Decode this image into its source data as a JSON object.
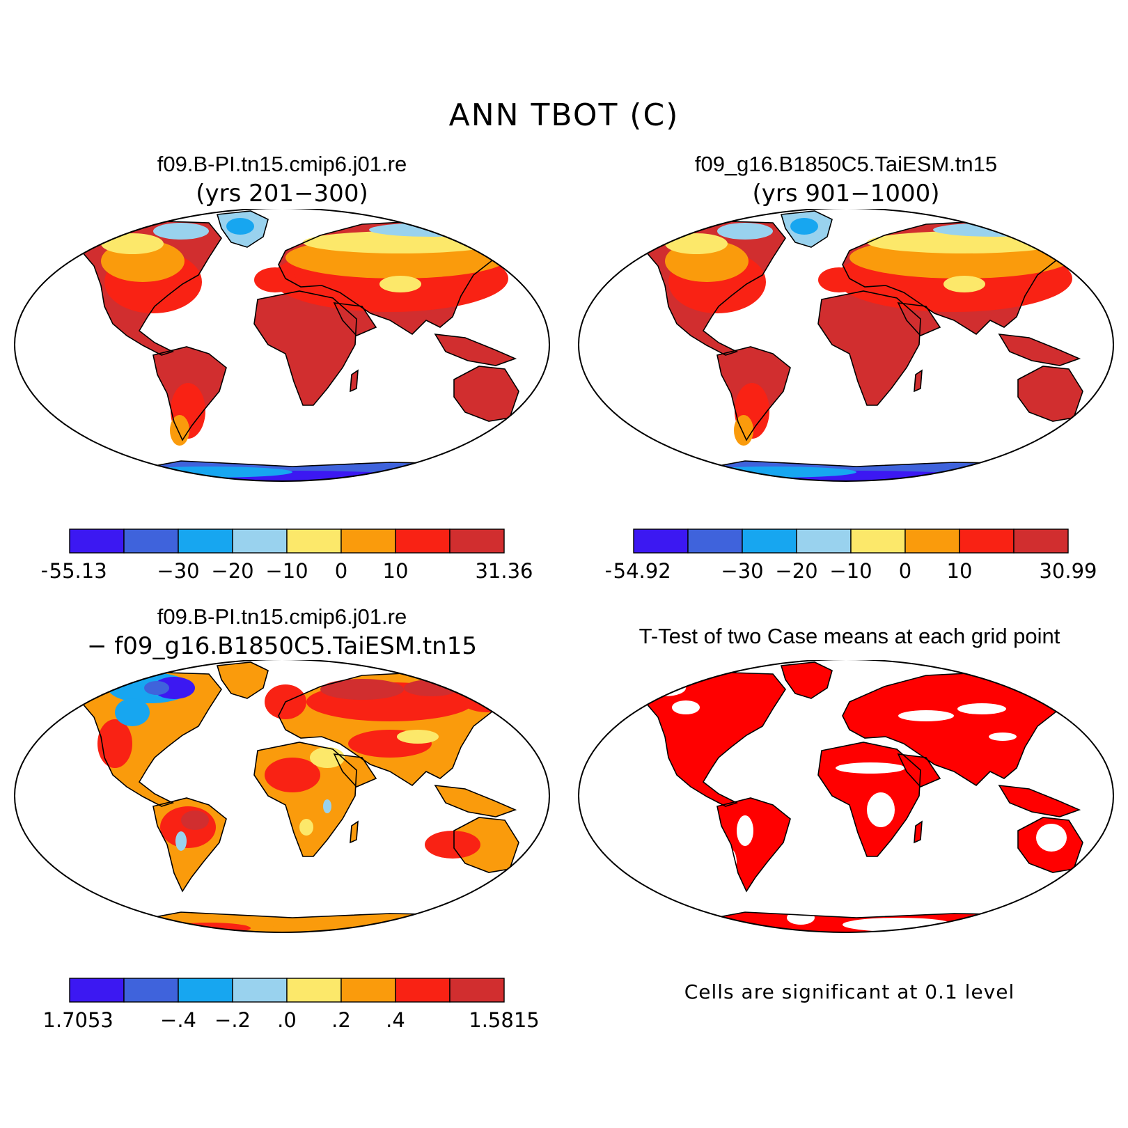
{
  "title": "ANN TBOT (C)",
  "colors": {
    "scale": [
      "#3c18f2",
      "#3f63dc",
      "#17a6f0",
      "#99d2ee",
      "#fce86a",
      "#fa9b0c",
      "#f92214",
      "#d12e2f"
    ],
    "land_outline": "#000000",
    "significant": "#ff0000"
  },
  "panels": [
    {
      "id": "case1",
      "title": "f09.B-PI.tn15.cmip6.j01.re",
      "subtitle": "(yrs 201−300)",
      "colorbar": {
        "labels": [
          "−55.13",
          "−30",
          "−20",
          "−10",
          "0",
          "10",
          "31.36"
        ]
      }
    },
    {
      "id": "case2",
      "title": "f09_g16.B1850C5.TaiESM.tn15",
      "subtitle": "(yrs 901−1000)",
      "colorbar": {
        "labels": [
          "−54.92",
          "−30",
          "−20",
          "−10",
          "0",
          "10",
          "30.99"
        ]
      }
    },
    {
      "id": "diff",
      "title": "f09.B-PI.tn15.cmip6.j01.re",
      "subtitle": "− f09_g16.B1850C5.TaiESM.tn15",
      "colorbar": {
        "labels": [
          "−1.7053",
          "−.4",
          "−.2",
          ".0",
          ".2",
          ".4",
          "1.5815"
        ]
      }
    },
    {
      "id": "ttest",
      "title": "T-Test of two Case means at each grid point",
      "footnote": "Cells are significant at 0.1 level"
    }
  ]
}
